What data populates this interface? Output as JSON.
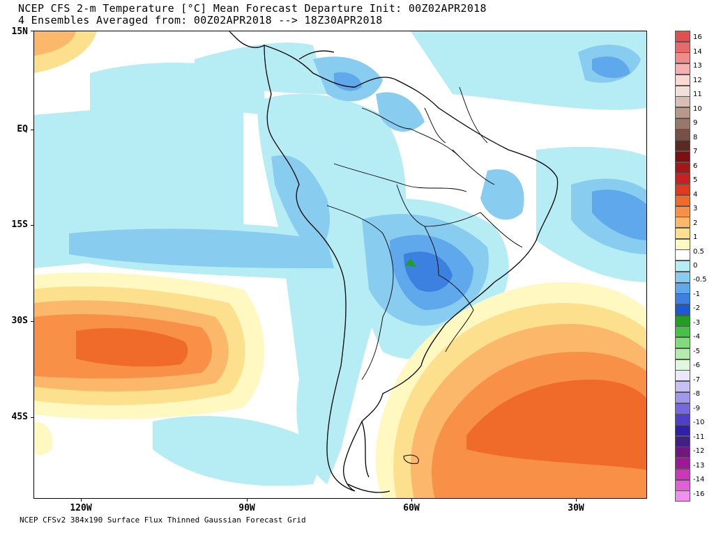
{
  "header": {
    "title_line1": "NCEP CFS 2-m Temperature [°C] Mean Forecast Departure Init: 00Z02APR2018",
    "title_line2": "4 Ensembles Averaged from: 00Z02APR2018 --> 18Z30APR2018"
  },
  "footer": {
    "text": "NCEP CFSv2 384x190 Surface Flux Thinned Gaussian Forecast Grid"
  },
  "axes": {
    "lat_labels": [
      "15N",
      "EQ",
      "15S",
      "30S",
      "45S"
    ],
    "lon_labels": [
      "120W",
      "90W",
      "60W",
      "30W"
    ]
  },
  "colorbar": {
    "labels": [
      "16",
      "14",
      "13",
      "12",
      "11",
      "10",
      "9",
      "8",
      "7",
      "6",
      "5",
      "4",
      "3",
      "2",
      "1",
      "0.5",
      "0",
      "-0.5",
      "-1",
      "-2",
      "-3",
      "-4",
      "-5",
      "-6",
      "-7",
      "-8",
      "-9",
      "-10",
      "-11",
      "-12",
      "-13",
      "-14",
      "-16"
    ],
    "colors": [
      "#e0504f",
      "#e8696a",
      "#f08b8a",
      "#f6b0ae",
      "#fbd8d4",
      "#f0e0da",
      "#d8bfb4",
      "#b89888",
      "#98786a",
      "#7a5046",
      "#5a2a22",
      "#7a1010",
      "#a01818",
      "#c82020",
      "#e03a1c",
      "#f06a2a",
      "#f89048",
      "#fcb86a",
      "#fde08e",
      "#fff8c0",
      "#ffffff",
      "#b6ecf4",
      "#88ccf0",
      "#60a8ec",
      "#3c80e0",
      "#1c5ad0",
      "#20a020",
      "#48c048",
      "#80dc78",
      "#b4ecac",
      "#e0f8dc",
      "#ece8fc",
      "#c8c0f4",
      "#a098ec",
      "#7868e0",
      "#5040c8",
      "#3020a8",
      "#402080",
      "#701880",
      "#a0189a",
      "#c838b8",
      "#e060d8",
      "#f090ec"
    ]
  },
  "map": {
    "features": [
      "south-america",
      "central-america",
      "caribbean-islands",
      "falkland-islands",
      "tierra-del-fuego"
    ],
    "water_color": "#ffffff"
  }
}
